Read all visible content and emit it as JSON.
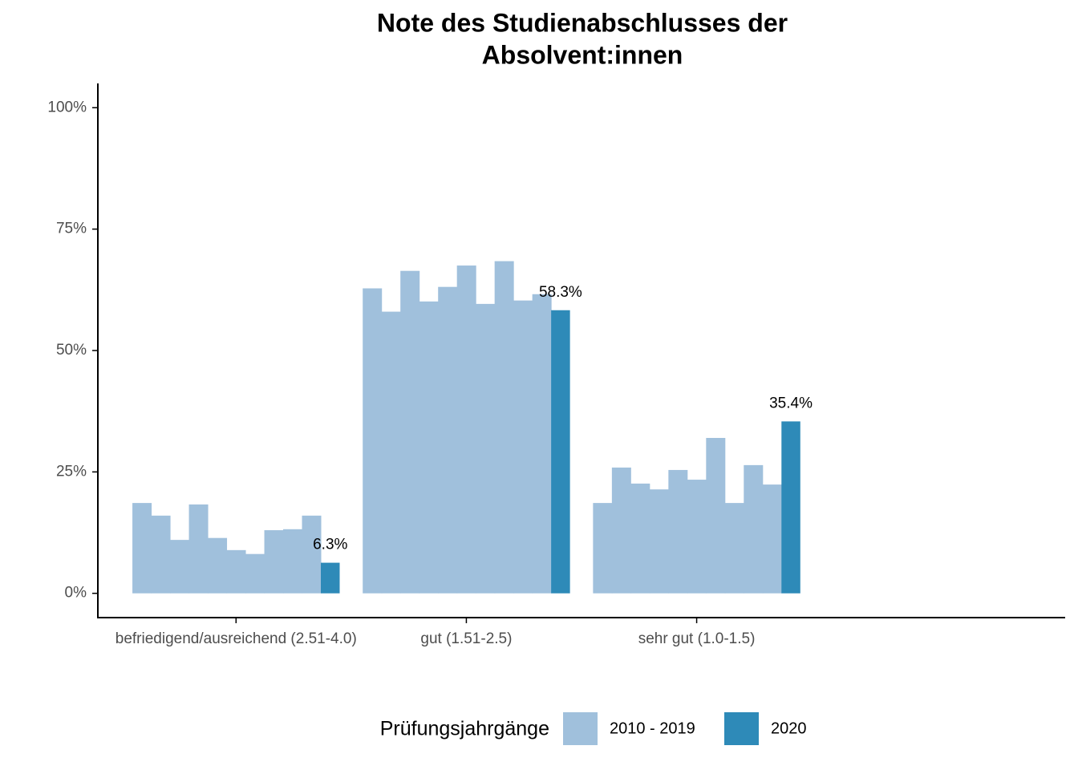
{
  "chart_data": {
    "type": "bar",
    "title": [
      "Note des Studienabschlusses der",
      "Absolvent:innen"
    ],
    "categories": [
      "befriedigend/ausreichend (2.51-4.0)",
      "gut (1.51-2.5)",
      "sehr gut (1.0-1.5)"
    ],
    "series": [
      {
        "name": "2010 - 2019",
        "color": "#a0c0dc",
        "values": [
          [
            18.6,
            16.0,
            11.0,
            18.3,
            11.4,
            8.9,
            8.1,
            13.0,
            13.2,
            16.0
          ],
          [
            62.8,
            58.0,
            66.4,
            60.1,
            63.1,
            67.5,
            59.6,
            68.4,
            60.3,
            61.6
          ],
          [
            18.6,
            25.9,
            22.6,
            21.4,
            25.4,
            23.4,
            32.0,
            18.6,
            26.4,
            22.4
          ]
        ]
      },
      {
        "name": "2020",
        "color": "#2e8ab8",
        "values": [
          6.3,
          58.3,
          35.4
        ],
        "value_labels": [
          "6.3%",
          "58.3%",
          "35.4%"
        ]
      }
    ],
    "legend_title": "Prüfungsjahrgänge",
    "legend_position": "bottom",
    "ylim": [
      -5,
      105
    ],
    "yticks": [
      {
        "value": 0,
        "label": "0%"
      },
      {
        "value": 25,
        "label": "25%"
      },
      {
        "value": 50,
        "label": "50%"
      },
      {
        "value": 75,
        "label": "75%"
      },
      {
        "value": 100,
        "label": "100%"
      }
    ],
    "grid": false
  }
}
